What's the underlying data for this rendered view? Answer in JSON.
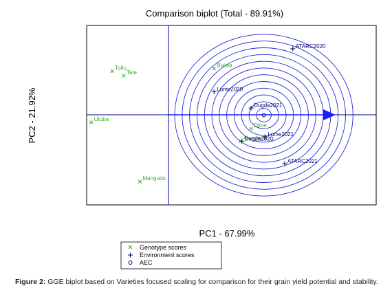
{
  "chart_data": {
    "type": "scatter",
    "title": "Comparison biplot (Total - 89.91%)",
    "xlabel": "PC1 - 67.99%",
    "ylabel": "PC2 - 21.92%",
    "xlim": [
      -1.0,
      1.5
    ],
    "ylim": [
      -1.0,
      1.0
    ],
    "genotypes": [
      {
        "label": "Toltu",
        "x": -0.78,
        "y": 0.49
      },
      {
        "label": "Tate",
        "x": -0.68,
        "y": 0.44
      },
      {
        "label": "Utuba",
        "x": -0.96,
        "y": -0.08
      },
      {
        "label": "Mangudo",
        "x": -0.54,
        "y": -0.74
      },
      {
        "label": "Bulala",
        "x": 0.1,
        "y": 0.52
      },
      {
        "label": "Dime",
        "x": 0.42,
        "y": -0.15
      },
      {
        "label": "Alemtena",
        "x": 0.33,
        "y": -0.29
      }
    ],
    "environments": [
      {
        "label": "ATARC2020",
        "x": 0.78,
        "y": 0.74
      },
      {
        "label": "Lume2020",
        "x": 0.1,
        "y": 0.26
      },
      {
        "label": "Dugda2021",
        "x": 0.42,
        "y": 0.08
      },
      {
        "label": "Dugda2020",
        "x": 0.34,
        "y": -0.29
      },
      {
        "label": "Lume2021",
        "x": 0.54,
        "y": -0.24
      },
      {
        "label": "ATARC2021",
        "x": 0.71,
        "y": -0.54
      }
    ],
    "aec": {
      "x": 0.53,
      "y": 0.0
    },
    "legend": {
      "position": "bottom",
      "items": [
        {
          "symbol": "x",
          "label": "Genotype scores"
        },
        {
          "symbol": "+",
          "label": "Environment scores"
        },
        {
          "symbol": "o",
          "label": "AEC"
        }
      ]
    },
    "colors": {
      "genotype": "#33aa33",
      "environment": "#000066",
      "rings": "#2222dd",
      "axes": "#000099"
    }
  },
  "caption": {
    "bold": "Figure 2:",
    "text": "GGE biplot based on Varieties focused scaling for comparison for their grain yield potential and stability."
  }
}
